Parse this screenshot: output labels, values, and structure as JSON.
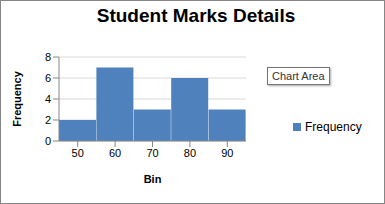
{
  "chart_data": {
    "type": "bar",
    "title": "Student Marks Details",
    "x_label": "Bin",
    "y_label": "Frequency",
    "categories": [
      "50",
      "60",
      "70",
      "80",
      "90"
    ],
    "series": [
      {
        "name": "Frequency",
        "color": "#4f81bd",
        "values": [
          2,
          7,
          3,
          6,
          3
        ]
      }
    ],
    "ylim": [
      0,
      8
    ],
    "yticks": [
      0,
      2,
      4,
      6,
      8
    ],
    "grid": true,
    "legend": "right",
    "annotation": "Chart Area"
  }
}
